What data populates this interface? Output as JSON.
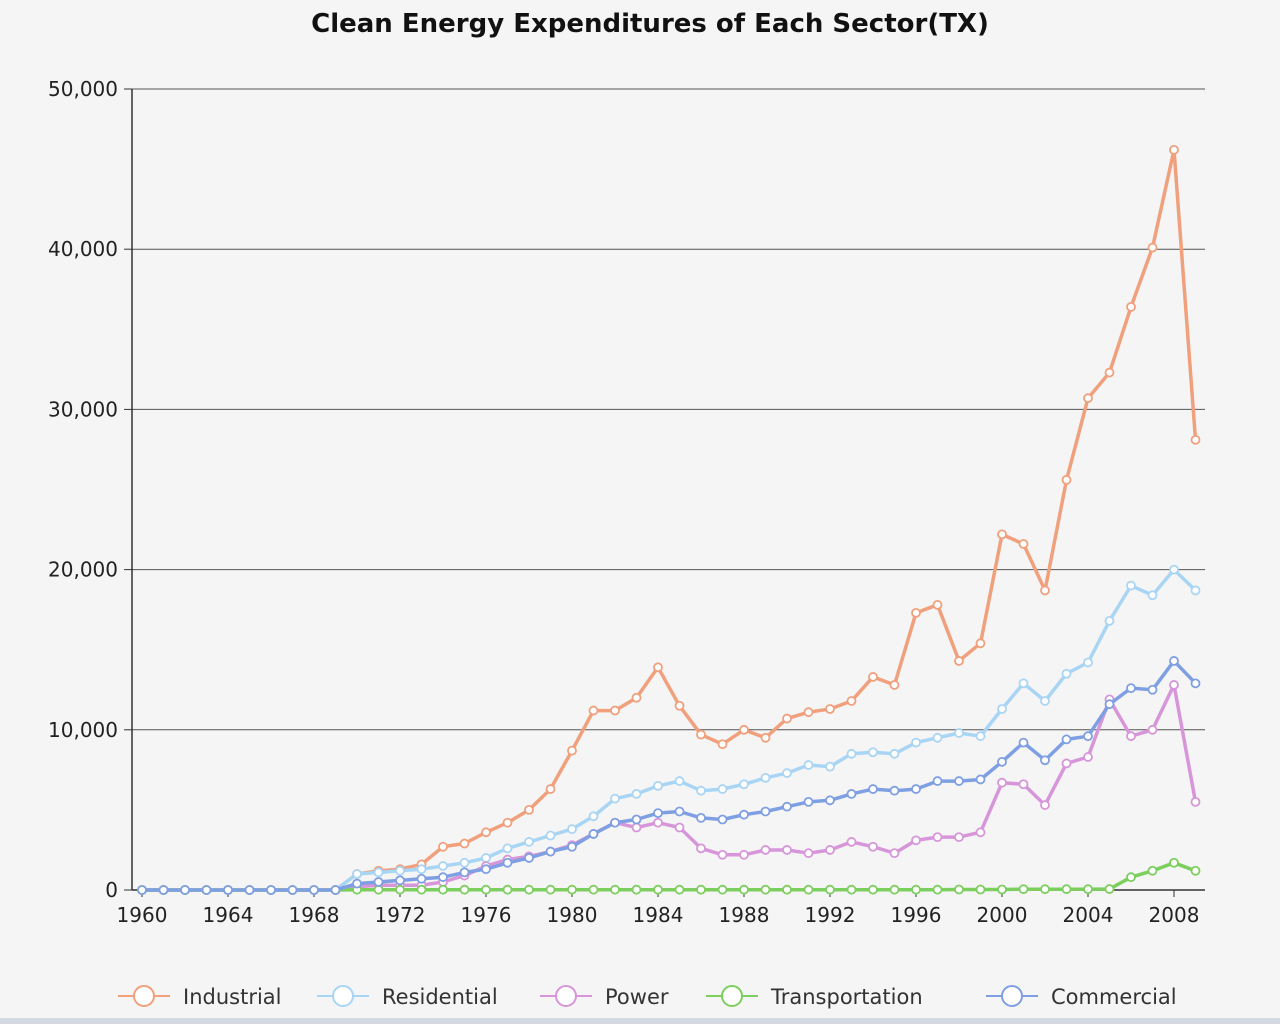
{
  "chart_data": {
    "type": "line",
    "title": "Clean Energy Expenditures of Each Sector(TX)",
    "xlabel": "",
    "ylabel": "",
    "ylim": [
      0,
      50000
    ],
    "y_ticks": [
      0,
      10000,
      20000,
      30000,
      40000,
      50000
    ],
    "y_tick_labels": [
      "0",
      "10,000",
      "20,000",
      "30,000",
      "40,000",
      "50,000"
    ],
    "x_ticks": [
      1960,
      1964,
      1968,
      1972,
      1976,
      1980,
      1984,
      1988,
      1992,
      1996,
      2000,
      2004,
      2008
    ],
    "x_tick_labels": [
      "1960",
      "1964",
      "1968",
      "1972",
      "1976",
      "1980",
      "1984",
      "1988",
      "1992",
      "1996",
      "2000",
      "2004",
      "2008"
    ],
    "x": [
      1960,
      1961,
      1962,
      1963,
      1964,
      1965,
      1966,
      1967,
      1968,
      1969,
      1970,
      1971,
      1972,
      1973,
      1974,
      1975,
      1976,
      1977,
      1978,
      1979,
      1980,
      1981,
      1982,
      1983,
      1984,
      1985,
      1986,
      1987,
      1988,
      1989,
      1990,
      1991,
      1992,
      1993,
      1994,
      1995,
      1996,
      1997,
      1998,
      1999,
      2000,
      2001,
      2002,
      2003,
      2004,
      2005,
      2006,
      2007,
      2008,
      2009
    ],
    "grid": true,
    "legend_position": "bottom",
    "series": [
      {
        "name": "Industrial",
        "color": "#f0a07c",
        "values": [
          0,
          0,
          0,
          0,
          0,
          0,
          0,
          0,
          0,
          0,
          1000,
          1200,
          1300,
          1600,
          2700,
          2900,
          3600,
          4200,
          5000,
          6300,
          8700,
          11200,
          11200,
          12000,
          13900,
          11500,
          9700,
          9100,
          10000,
          9500,
          10700,
          11100,
          11300,
          11800,
          13300,
          12800,
          17300,
          17800,
          14300,
          15400,
          22200,
          21600,
          18700,
          25600,
          30700,
          32300,
          36400,
          40100,
          46200,
          28100
        ]
      },
      {
        "name": "Residential",
        "color": "#a9d5f5",
        "values": [
          0,
          0,
          0,
          0,
          0,
          0,
          0,
          0,
          0,
          0,
          1000,
          1100,
          1200,
          1300,
          1500,
          1700,
          2000,
          2600,
          3000,
          3400,
          3800,
          4600,
          5700,
          6000,
          6500,
          6800,
          6200,
          6300,
          6600,
          7000,
          7300,
          7800,
          7700,
          8500,
          8600,
          8500,
          9200,
          9500,
          9800,
          9600,
          11300,
          12900,
          11800,
          13500,
          14200,
          16800,
          19000,
          18400,
          20000,
          18700
        ]
      },
      {
        "name": "Power",
        "color": "#d696d9",
        "values": [
          0,
          0,
          0,
          0,
          0,
          0,
          0,
          0,
          0,
          0,
          200,
          300,
          300,
          300,
          500,
          900,
          1500,
          1900,
          2100,
          2400,
          2800,
          3500,
          4200,
          3900,
          4200,
          3900,
          2600,
          2200,
          2200,
          2500,
          2500,
          2300,
          2500,
          3000,
          2700,
          2300,
          3100,
          3300,
          3300,
          3600,
          6700,
          6600,
          5300,
          7900,
          8300,
          11900,
          9600,
          10000,
          12800,
          5500
        ]
      },
      {
        "name": "Transportation",
        "color": "#7ccf5e",
        "values": [
          0,
          0,
          0,
          0,
          0,
          0,
          0,
          0,
          0,
          0,
          20,
          20,
          20,
          20,
          20,
          20,
          20,
          20,
          20,
          20,
          20,
          20,
          20,
          20,
          20,
          20,
          20,
          20,
          20,
          20,
          20,
          20,
          20,
          20,
          20,
          20,
          20,
          20,
          30,
          30,
          30,
          50,
          50,
          50,
          50,
          60,
          800,
          1200,
          1700,
          1200
        ]
      },
      {
        "name": "Commercial",
        "color": "#7f9fe3",
        "values": [
          0,
          0,
          0,
          0,
          0,
          0,
          0,
          0,
          0,
          0,
          400,
          500,
          600,
          700,
          800,
          1100,
          1300,
          1700,
          2000,
          2400,
          2700,
          3500,
          4200,
          4400,
          4800,
          4900,
          4500,
          4400,
          4700,
          4900,
          5200,
          5500,
          5600,
          6000,
          6300,
          6200,
          6300,
          6800,
          6800,
          6900,
          8000,
          9200,
          8100,
          9400,
          9600,
          11600,
          12600,
          12500,
          14300,
          12900
        ]
      }
    ]
  }
}
